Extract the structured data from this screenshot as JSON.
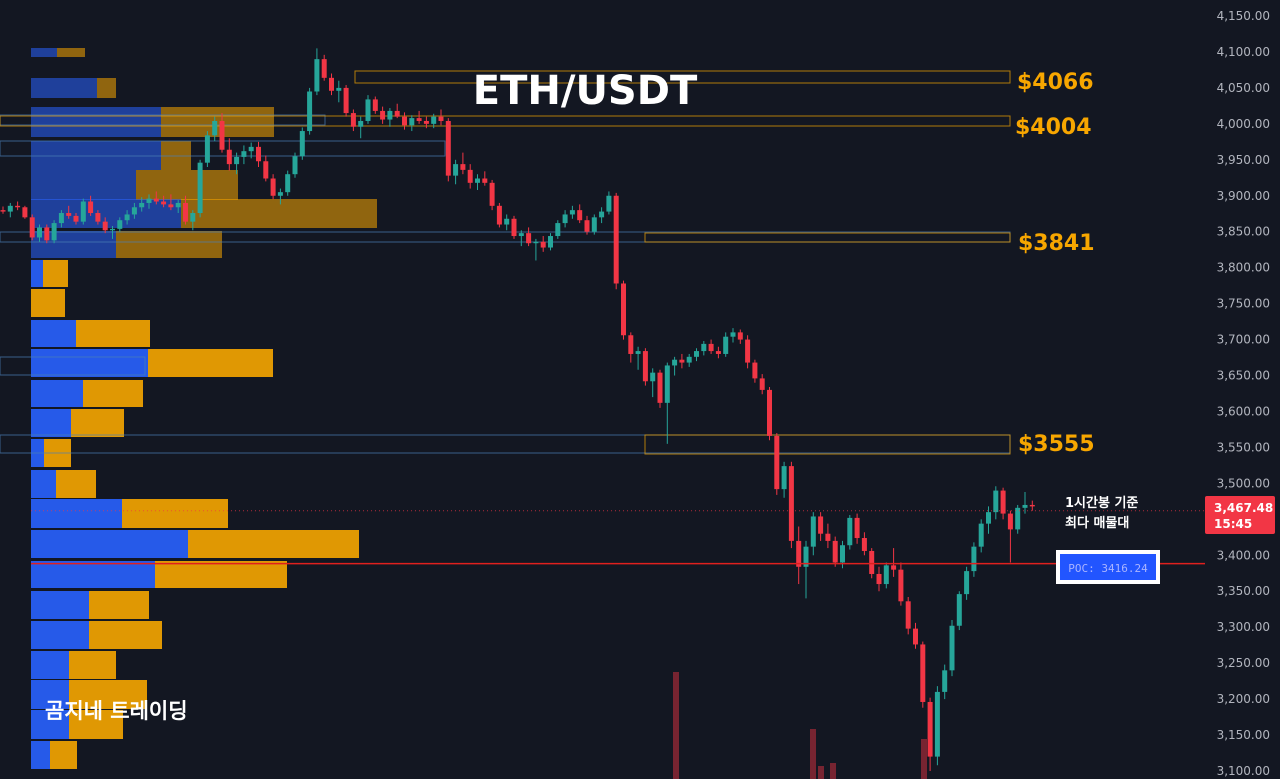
{
  "chart_data": {
    "type": "candlestick",
    "title": "ETH/USDT",
    "watermark": "곰지네 트레이딩",
    "y_axis": {
      "ylim": [
        3090,
        4160
      ],
      "ticks": [
        "4,150.00",
        "4,100.00",
        "4,050.00",
        "4,000.00",
        "3,950.00",
        "3,900.00",
        "3,850.00",
        "3,800.00",
        "3,750.00",
        "3,700.00",
        "3,650.00",
        "3,600.00",
        "3,550.00",
        "3,500.00",
        "3,450.00",
        "3,400.00",
        "3,350.00",
        "3,300.00",
        "3,250.00",
        "3,200.00",
        "3,150.00",
        "3,100.00"
      ],
      "tick_values": [
        4150,
        4100,
        4050,
        4000,
        3950,
        3900,
        3850,
        3800,
        3750,
        3700,
        3650,
        3600,
        3550,
        3500,
        3450,
        3400,
        3350,
        3300,
        3250,
        3200,
        3150,
        3100
      ]
    },
    "current_price": {
      "value": 3467.48,
      "label": "3,467.48",
      "countdown": "15:45"
    },
    "levels": [
      {
        "label": "$4066",
        "value": 4066
      },
      {
        "label": "$4004",
        "value": 4004
      },
      {
        "label": "$3841",
        "value": 3841
      },
      {
        "label": "$3555",
        "value": 3555
      }
    ],
    "poc": {
      "label": "POC: 3416.24",
      "value": 3416.24
    },
    "annotation": [
      "1시간봉 기준",
      "최다 매물대"
    ],
    "colors": {
      "up": "#26a69a",
      "down": "#f23645",
      "level": "#f7a600",
      "poc_line": "#e0201e",
      "vp_buy": "#2962ff",
      "vp_sell": "#f7a600",
      "bg": "#131722"
    },
    "candles": [
      [
        3880,
        3885,
        3875,
        3878
      ],
      [
        3878,
        3890,
        3870,
        3886
      ],
      [
        3886,
        3892,
        3880,
        3884
      ],
      [
        3884,
        3886,
        3868,
        3870
      ],
      [
        3870,
        3874,
        3838,
        3842
      ],
      [
        3842,
        3860,
        3836,
        3856
      ],
      [
        3856,
        3860,
        3834,
        3838
      ],
      [
        3838,
        3866,
        3834,
        3862
      ],
      [
        3862,
        3880,
        3856,
        3876
      ],
      [
        3876,
        3886,
        3868,
        3872
      ],
      [
        3872,
        3876,
        3860,
        3864
      ],
      [
        3864,
        3896,
        3860,
        3892
      ],
      [
        3892,
        3900,
        3872,
        3876
      ],
      [
        3876,
        3880,
        3860,
        3864
      ],
      [
        3864,
        3870,
        3848,
        3852
      ],
      [
        3852,
        3858,
        3840,
        3854
      ],
      [
        3854,
        3870,
        3850,
        3866
      ],
      [
        3866,
        3880,
        3860,
        3874
      ],
      [
        3874,
        3890,
        3868,
        3884
      ],
      [
        3884,
        3898,
        3878,
        3890
      ],
      [
        3890,
        3902,
        3882,
        3896
      ],
      [
        3896,
        3906,
        3888,
        3892
      ],
      [
        3892,
        3900,
        3884,
        3888
      ],
      [
        3888,
        3902,
        3880,
        3884
      ],
      [
        3884,
        3894,
        3876,
        3890
      ],
      [
        3890,
        3900,
        3860,
        3864
      ],
      [
        3864,
        3880,
        3852,
        3876
      ],
      [
        3876,
        3950,
        3870,
        3946
      ],
      [
        3946,
        3990,
        3940,
        3984
      ],
      [
        3984,
        4010,
        3976,
        4004
      ],
      [
        4004,
        4015,
        3960,
        3964
      ],
      [
        3964,
        3980,
        3935,
        3944
      ],
      [
        3944,
        3960,
        3930,
        3954
      ],
      [
        3954,
        3970,
        3944,
        3962
      ],
      [
        3962,
        3974,
        3952,
        3968
      ],
      [
        3968,
        3975,
        3940,
        3948
      ],
      [
        3948,
        3956,
        3920,
        3924
      ],
      [
        3924,
        3930,
        3895,
        3900
      ],
      [
        3900,
        3910,
        3888,
        3905
      ],
      [
        3905,
        3935,
        3900,
        3930
      ],
      [
        3930,
        3960,
        3925,
        3955
      ],
      [
        3955,
        3995,
        3950,
        3990
      ],
      [
        3990,
        4050,
        3985,
        4045
      ],
      [
        4045,
        4105,
        4040,
        4090
      ],
      [
        4090,
        4096,
        4060,
        4064
      ],
      [
        4064,
        4070,
        4040,
        4046
      ],
      [
        4046,
        4060,
        4030,
        4050
      ],
      [
        4050,
        4054,
        4010,
        4015
      ],
      [
        4015,
        4020,
        3990,
        3996
      ],
      [
        3996,
        4010,
        3980,
        4004
      ],
      [
        4004,
        4040,
        4000,
        4034
      ],
      [
        4034,
        4038,
        4014,
        4018
      ],
      [
        4018,
        4024,
        4000,
        4006
      ],
      [
        4006,
        4022,
        3996,
        4018
      ],
      [
        4018,
        4028,
        4008,
        4010
      ],
      [
        4010,
        4016,
        3992,
        3998
      ],
      [
        3998,
        4012,
        3990,
        4008
      ],
      [
        4008,
        4018,
        4000,
        4004
      ],
      [
        4004,
        4010,
        3994,
        4000
      ],
      [
        4000,
        4014,
        3994,
        4010
      ],
      [
        4010,
        4020,
        3998,
        4004
      ],
      [
        4004,
        4008,
        3920,
        3928
      ],
      [
        3928,
        3950,
        3916,
        3944
      ],
      [
        3944,
        3960,
        3930,
        3936
      ],
      [
        3936,
        3944,
        3910,
        3918
      ],
      [
        3918,
        3930,
        3908,
        3924
      ],
      [
        3924,
        3934,
        3914,
        3918
      ],
      [
        3918,
        3922,
        3880,
        3886
      ],
      [
        3886,
        3890,
        3856,
        3860
      ],
      [
        3860,
        3874,
        3852,
        3868
      ],
      [
        3868,
        3872,
        3840,
        3844
      ],
      [
        3844,
        3852,
        3830,
        3848
      ],
      [
        3848,
        3856,
        3830,
        3834
      ],
      [
        3834,
        3840,
        3810,
        3836
      ],
      [
        3836,
        3844,
        3822,
        3828
      ],
      [
        3828,
        3848,
        3824,
        3844
      ],
      [
        3844,
        3866,
        3840,
        3862
      ],
      [
        3862,
        3880,
        3856,
        3874
      ],
      [
        3874,
        3886,
        3868,
        3880
      ],
      [
        3880,
        3888,
        3862,
        3866
      ],
      [
        3866,
        3872,
        3846,
        3850
      ],
      [
        3850,
        3874,
        3846,
        3870
      ],
      [
        3870,
        3884,
        3862,
        3878
      ],
      [
        3878,
        3906,
        3874,
        3900
      ],
      [
        3900,
        3904,
        3770,
        3778
      ],
      [
        3778,
        3782,
        3700,
        3706
      ],
      [
        3706,
        3710,
        3668,
        3680
      ],
      [
        3680,
        3690,
        3658,
        3684
      ],
      [
        3684,
        3688,
        3636,
        3642
      ],
      [
        3642,
        3660,
        3620,
        3654
      ],
      [
        3654,
        3658,
        3605,
        3612
      ],
      [
        3612,
        3668,
        3555,
        3664
      ],
      [
        3664,
        3676,
        3650,
        3672
      ],
      [
        3672,
        3680,
        3660,
        3668
      ],
      [
        3668,
        3680,
        3662,
        3676
      ],
      [
        3676,
        3688,
        3670,
        3684
      ],
      [
        3684,
        3698,
        3678,
        3694
      ],
      [
        3694,
        3700,
        3680,
        3684
      ],
      [
        3684,
        3690,
        3674,
        3680
      ],
      [
        3680,
        3710,
        3676,
        3704
      ],
      [
        3704,
        3716,
        3696,
        3710
      ],
      [
        3710,
        3714,
        3694,
        3700
      ],
      [
        3700,
        3706,
        3660,
        3668
      ],
      [
        3668,
        3672,
        3640,
        3646
      ],
      [
        3646,
        3652,
        3624,
        3630
      ],
      [
        3630,
        3634,
        3560,
        3566
      ],
      [
        3566,
        3570,
        3484,
        3492
      ],
      [
        3492,
        3530,
        3480,
        3524
      ],
      [
        3524,
        3530,
        3410,
        3420
      ],
      [
        3420,
        3440,
        3360,
        3384
      ],
      [
        3384,
        3420,
        3340,
        3412
      ],
      [
        3412,
        3460,
        3400,
        3454
      ],
      [
        3454,
        3460,
        3420,
        3430
      ],
      [
        3430,
        3444,
        3410,
        3420
      ],
      [
        3420,
        3426,
        3384,
        3390
      ],
      [
        3390,
        3420,
        3382,
        3414
      ],
      [
        3414,
        3456,
        3408,
        3452
      ],
      [
        3452,
        3458,
        3416,
        3424
      ],
      [
        3424,
        3432,
        3400,
        3406
      ],
      [
        3406,
        3410,
        3368,
        3374
      ],
      [
        3374,
        3384,
        3350,
        3360
      ],
      [
        3360,
        3390,
        3354,
        3386
      ],
      [
        3386,
        3410,
        3370,
        3380
      ],
      [
        3380,
        3390,
        3330,
        3336
      ],
      [
        3336,
        3342,
        3290,
        3298
      ],
      [
        3298,
        3306,
        3270,
        3276
      ],
      [
        3276,
        3280,
        3188,
        3196
      ],
      [
        3196,
        3202,
        3100,
        3120
      ],
      [
        3120,
        3218,
        3108,
        3210
      ],
      [
        3210,
        3248,
        3200,
        3240
      ],
      [
        3240,
        3310,
        3232,
        3302
      ],
      [
        3302,
        3350,
        3296,
        3346
      ],
      [
        3346,
        3384,
        3338,
        3378
      ],
      [
        3378,
        3418,
        3370,
        3412
      ],
      [
        3412,
        3450,
        3404,
        3444
      ],
      [
        3444,
        3468,
        3430,
        3460
      ],
      [
        3460,
        3496,
        3450,
        3490
      ],
      [
        3490,
        3494,
        3450,
        3458
      ],
      [
        3458,
        3462,
        3390,
        3436
      ],
      [
        3436,
        3470,
        3430,
        3466
      ],
      [
        3466,
        3488,
        3458,
        3470
      ],
      [
        3470,
        3476,
        3462,
        3468
      ]
    ]
  }
}
